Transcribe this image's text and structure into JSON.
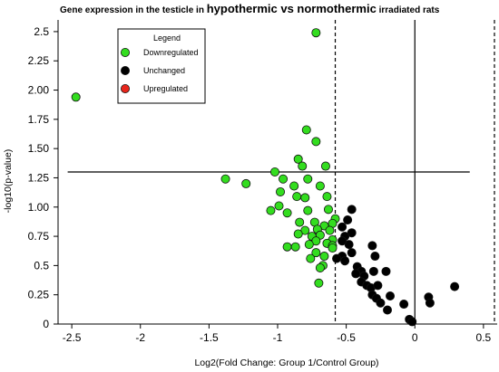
{
  "title": {
    "p1": "Gene expression in the testicle in ",
    "p2": "hypothermic vs normothermic",
    "p3": " irradiated rats"
  },
  "chart_data": {
    "type": "scatter",
    "xlabel": "Log2(Fold Change: Group 1/Control Group)",
    "ylabel": "-log10(p-value)",
    "xlim": [
      -2.6,
      0.6
    ],
    "ylim": [
      0,
      2.6
    ],
    "x_ticks": [
      "-2.5",
      "-2",
      "-1.5",
      "-1",
      "-0.5",
      "0",
      "0.5"
    ],
    "y_ticks": [
      "0",
      "0.25",
      "0.5",
      "0.75",
      "1.00",
      "1.25",
      "1.50",
      "1.75",
      "2.00",
      "2.25",
      "2.5"
    ],
    "reference_lines": {
      "threshold_y": 1.3,
      "threshold_x_range": [
        -2.53,
        0.4
      ],
      "vertical_solid_x": 0,
      "vertical_dashed_x": [
        -0.58,
        0.58
      ]
    },
    "legend": {
      "title": "Legend",
      "position": "top-left",
      "items": [
        {
          "label": "Downregulated",
          "color": "#33dd1f"
        },
        {
          "label": "Unchanged",
          "color": "#000000"
        },
        {
          "label": "Upregulated",
          "color": "#e8261c"
        }
      ]
    },
    "series": [
      {
        "name": "Downregulated",
        "color": "#33dd1f",
        "points": [
          [
            -0.72,
            2.49
          ],
          [
            -2.47,
            1.94
          ],
          [
            -0.79,
            1.66
          ],
          [
            -0.72,
            1.56
          ],
          [
            -0.85,
            1.41
          ],
          [
            -0.82,
            1.35
          ],
          [
            -0.65,
            1.35
          ],
          [
            -1.02,
            1.3
          ],
          [
            -1.38,
            1.24
          ],
          [
            -1.23,
            1.2
          ],
          [
            -0.96,
            1.24
          ],
          [
            -0.88,
            1.18
          ],
          [
            -0.78,
            1.24
          ],
          [
            -0.69,
            1.18
          ],
          [
            -0.98,
            1.13
          ],
          [
            -0.86,
            1.09
          ],
          [
            -0.8,
            1.08
          ],
          [
            -0.64,
            1.09
          ],
          [
            -1.05,
            0.97
          ],
          [
            -0.99,
            1.01
          ],
          [
            -0.93,
            0.95
          ],
          [
            -0.78,
            0.97
          ],
          [
            -0.63,
            0.98
          ],
          [
            -0.58,
            0.9
          ],
          [
            -0.6,
            0.86
          ],
          [
            -0.84,
            0.87
          ],
          [
            -0.73,
            0.87
          ],
          [
            -0.66,
            0.84
          ],
          [
            -0.71,
            0.81
          ],
          [
            -0.8,
            0.8
          ],
          [
            -0.85,
            0.77
          ],
          [
            -0.75,
            0.75
          ],
          [
            -0.69,
            0.76
          ],
          [
            -0.62,
            0.8
          ],
          [
            -0.6,
            0.72
          ],
          [
            -0.72,
            0.71
          ],
          [
            -0.77,
            0.68
          ],
          [
            -0.64,
            0.69
          ],
          [
            -0.6,
            0.67
          ],
          [
            -0.6,
            0.65
          ],
          [
            -0.93,
            0.66
          ],
          [
            -0.87,
            0.66
          ],
          [
            -0.72,
            0.61
          ],
          [
            -0.76,
            0.56
          ],
          [
            -0.66,
            0.58
          ],
          [
            -0.67,
            0.5
          ],
          [
            -0.69,
            0.48
          ],
          [
            -0.7,
            0.35
          ]
        ]
      },
      {
        "name": "Unchanged",
        "color": "#000000",
        "points": [
          [
            -0.46,
            0.98
          ],
          [
            -0.49,
            0.89
          ],
          [
            -0.53,
            0.83
          ],
          [
            -0.46,
            0.78
          ],
          [
            -0.51,
            0.75
          ],
          [
            -0.48,
            0.68
          ],
          [
            -0.53,
            0.71
          ],
          [
            -0.31,
            0.67
          ],
          [
            -0.46,
            0.61
          ],
          [
            -0.53,
            0.58
          ],
          [
            -0.57,
            0.56
          ],
          [
            -0.29,
            0.58
          ],
          [
            -0.51,
            0.54
          ],
          [
            -0.42,
            0.49
          ],
          [
            -0.39,
            0.45
          ],
          [
            -0.3,
            0.45
          ],
          [
            -0.37,
            0.41
          ],
          [
            -0.43,
            0.43
          ],
          [
            -0.39,
            0.36
          ],
          [
            -0.21,
            0.45
          ],
          [
            -0.35,
            0.33
          ],
          [
            -0.32,
            0.31
          ],
          [
            -0.27,
            0.33
          ],
          [
            -0.31,
            0.25
          ],
          [
            -0.28,
            0.22
          ],
          [
            -0.18,
            0.24
          ],
          [
            -0.25,
            0.18
          ],
          [
            -0.2,
            0.12
          ],
          [
            -0.08,
            0.17
          ],
          [
            -0.04,
            0.04
          ],
          [
            -0.02,
            0.02
          ],
          [
            0.1,
            0.23
          ],
          [
            0.11,
            0.18
          ],
          [
            0.29,
            0.32
          ]
        ]
      },
      {
        "name": "Upregulated",
        "color": "#e8261c",
        "points": []
      }
    ]
  }
}
